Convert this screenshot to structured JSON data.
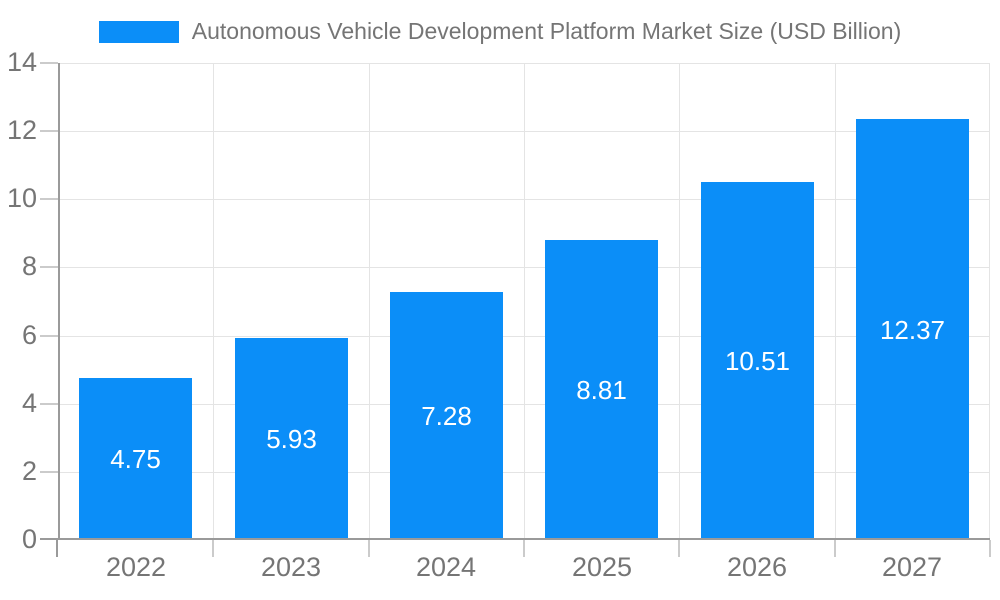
{
  "legend": {
    "label": "Autonomous Vehicle Development Platform Market Size (USD Billion)"
  },
  "chart_data": {
    "type": "bar",
    "title": "Autonomous Vehicle Development Platform Market Size (USD Billion)",
    "xlabel": "",
    "ylabel": "",
    "categories": [
      "2022",
      "2023",
      "2024",
      "2025",
      "2026",
      "2027"
    ],
    "values": [
      4.75,
      5.93,
      7.28,
      8.81,
      10.51,
      12.37
    ],
    "value_labels": [
      "4.75",
      "5.93",
      "7.28",
      "8.81",
      "10.51",
      "12.37"
    ],
    "ylim": [
      0,
      14
    ],
    "yticks": [
      0,
      2,
      4,
      6,
      8,
      10,
      12,
      14
    ],
    "grid": true,
    "legend_position": "top-center",
    "colors": {
      "bar": "#0b8ef8",
      "value_label": "#ffffff",
      "axis_line": "#9a9a9a",
      "grid_line": "#e4e4e4",
      "tick_line": "#cbcbcb",
      "text": "#757575",
      "background": "#ffffff"
    }
  }
}
